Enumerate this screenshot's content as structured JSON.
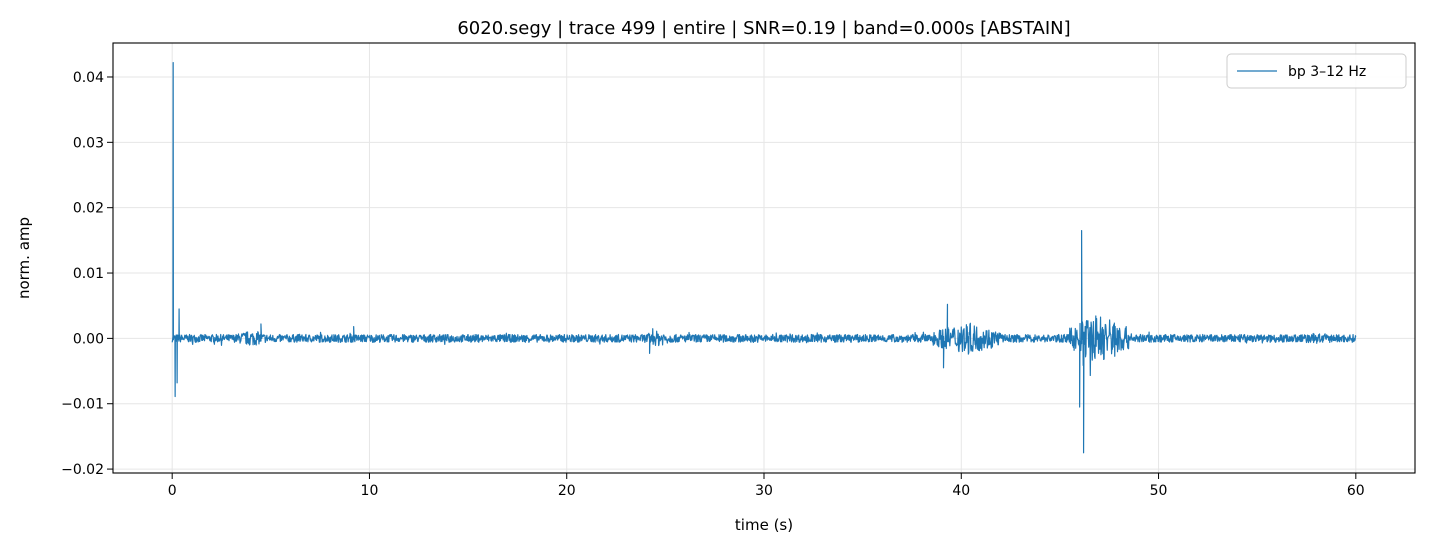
{
  "chart_data": {
    "type": "line",
    "title": "6020.segy | trace 499 | entire | SNR=0.19 | band=0.000s  [ABSTAIN]",
    "xlabel": "time (s)",
    "ylabel": "norm. amp",
    "xlim": [
      -3,
      63
    ],
    "ylim": [
      -0.0206,
      0.0452
    ],
    "xticks": [
      0,
      10,
      20,
      30,
      40,
      50,
      60
    ],
    "xtick_labels": [
      "0",
      "10",
      "20",
      "30",
      "40",
      "50",
      "60"
    ],
    "yticks": [
      -0.02,
      -0.01,
      0.0,
      0.01,
      0.02,
      0.03,
      0.04
    ],
    "ytick_labels": [
      "−0.02",
      "−0.01",
      "0.00",
      "0.01",
      "0.02",
      "0.03",
      "0.04"
    ],
    "grid": true,
    "legend_position": "top-right",
    "colors": {
      "series": "#1f77b4",
      "grid": "#e6e6e6",
      "axes": "#000000"
    },
    "series": [
      {
        "name": "bp 3–12 Hz",
        "duration_s": 60,
        "background_amplitude": 0.0006,
        "peaks": [
          {
            "t": 0.05,
            "value": 0.0422
          },
          {
            "t": 0.15,
            "value": -0.0089
          },
          {
            "t": 0.25,
            "value": -0.0068
          },
          {
            "t": 0.35,
            "value": 0.0045
          },
          {
            "t": 4.5,
            "value": 0.0022
          },
          {
            "t": 9.2,
            "value": 0.0018
          },
          {
            "t": 24.2,
            "value": -0.0023
          },
          {
            "t": 39.3,
            "value": 0.0052
          },
          {
            "t": 39.1,
            "value": -0.0045
          },
          {
            "t": 46.1,
            "value": 0.0165
          },
          {
            "t": 46.2,
            "value": -0.0175
          },
          {
            "t": 46.0,
            "value": -0.0105
          }
        ],
        "bursts": [
          {
            "t0": 3.0,
            "t1": 5.0,
            "amplitude": 0.0012
          },
          {
            "t0": 23.8,
            "t1": 25.5,
            "amplitude": 0.0012
          },
          {
            "t0": 38.5,
            "t1": 42.0,
            "amplitude": 0.0025
          },
          {
            "t0": 45.5,
            "t1": 48.5,
            "amplitude": 0.004
          },
          {
            "t0": 56.0,
            "t1": 60.0,
            "amplitude": 0.0008
          }
        ]
      }
    ]
  }
}
